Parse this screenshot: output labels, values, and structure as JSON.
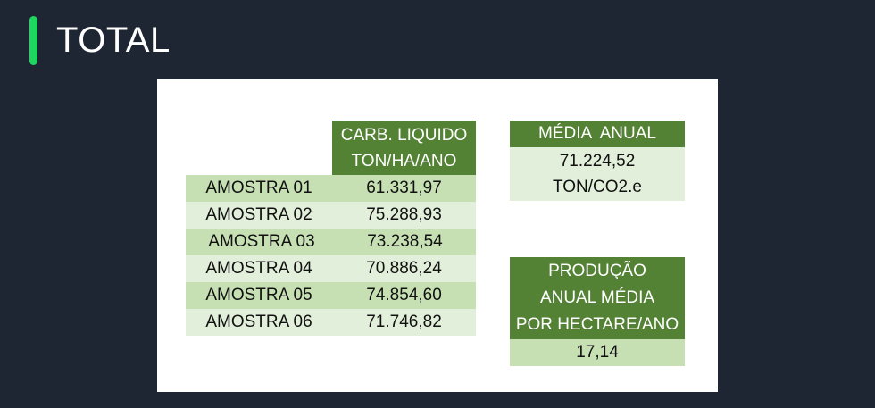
{
  "slide": {
    "title": "TOTAL"
  },
  "colors": {
    "background": "#1e2533",
    "accent": "#1ed760",
    "header_green": "#548235",
    "row_dark": "#c6e0b4",
    "row_light": "#e2efda"
  },
  "table": {
    "header_line1": "CARB. LIQUIDO",
    "header_line2": "TON/HA/ANO",
    "rows": [
      {
        "name": "AMOSTRA 01",
        "value": "61.331,97"
      },
      {
        "name": "AMOSTRA 02",
        "value": "75.288,93"
      },
      {
        "name": "AMOSTRA 03",
        "value": "73.238,54"
      },
      {
        "name": "AMOSTRA 04",
        "value": "70.886,24"
      },
      {
        "name": "AMOSTRA 05",
        "value": "74.854,60"
      },
      {
        "name": "AMOSTRA 06",
        "value": "71.746,82"
      }
    ]
  },
  "media_anual": {
    "header": "MÉDIA  ANUAL",
    "value": "71.224,52",
    "unit": "TON/CO2.e"
  },
  "producao": {
    "header_line1": "PRODUÇÃO",
    "header_line2": "ANUAL MÉDIA",
    "header_line3": "POR HECTARE/ANO",
    "value": "17,14"
  }
}
